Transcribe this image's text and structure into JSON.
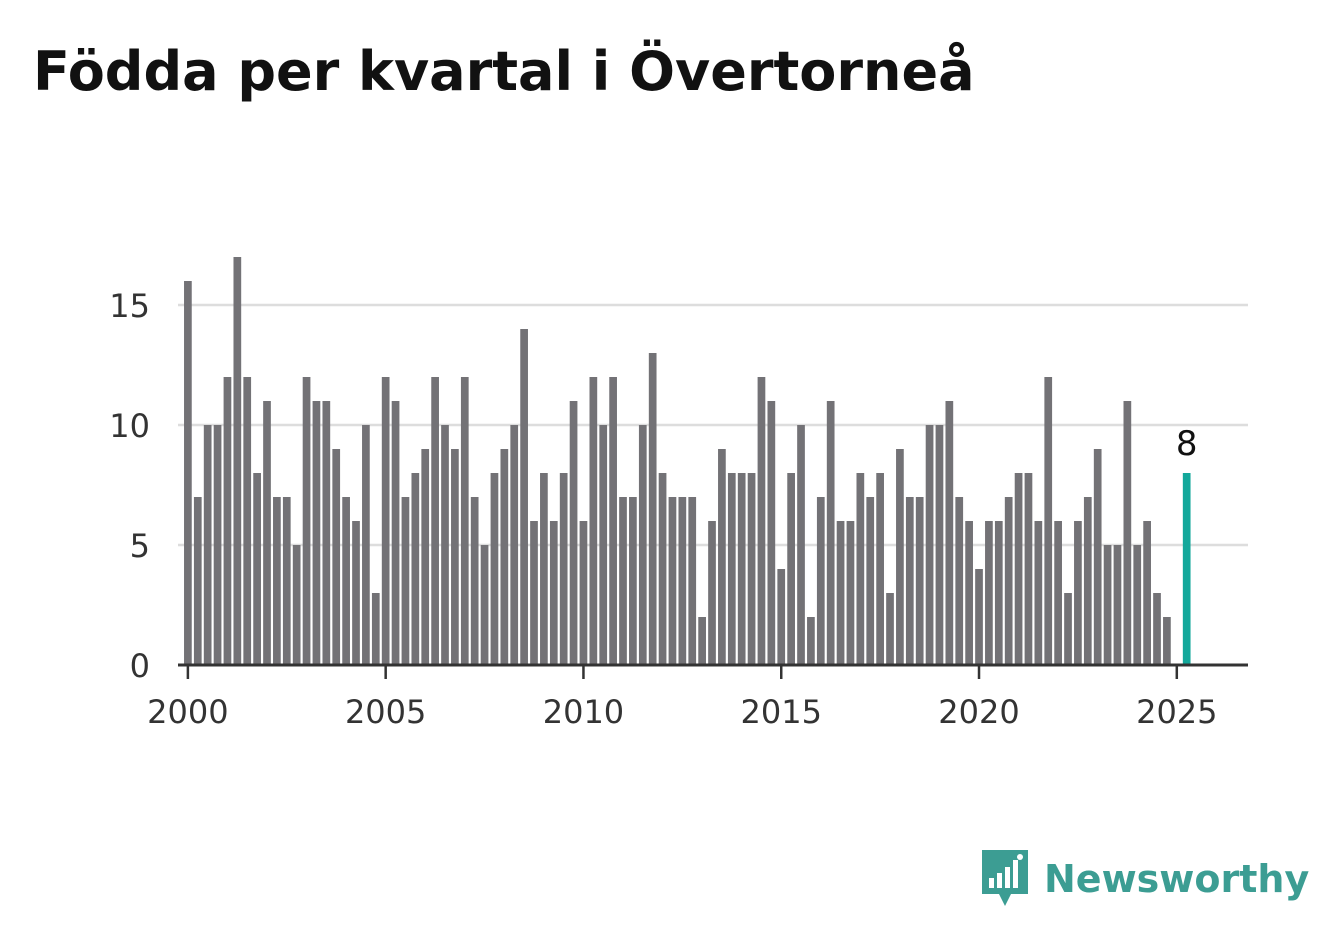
{
  "title": "Födda per kvartal i Övertorneå",
  "colors": {
    "bar": "#737276",
    "highlight": "#13a89b",
    "grid": "#dddddd",
    "axis": "#333333",
    "text": "#333333",
    "brand": "#3c9d93"
  },
  "brand": {
    "name": "Newsworthy",
    "icon": "bar-chart-speech-bubble-icon"
  },
  "chart_data": {
    "type": "bar",
    "title": "Födda per kvartal i Övertorneå",
    "xlabel": "",
    "ylabel": "",
    "xlim": [
      1999.75,
      2026.8
    ],
    "ylim": [
      0,
      17
    ],
    "yticks": [
      0,
      5,
      10,
      15
    ],
    "xticks": [
      2000,
      2005,
      2010,
      2015,
      2020,
      2025
    ],
    "grid": true,
    "legend": "none",
    "series": [
      {
        "start": "2000 Q1",
        "frequency": "quarter",
        "values": [
          16,
          7,
          10,
          10,
          12,
          17,
          12,
          8,
          11,
          7,
          7,
          5,
          12,
          11,
          11,
          9,
          7,
          6,
          10,
          3,
          12,
          11,
          7,
          8,
          9,
          12,
          10,
          9,
          12,
          7,
          5,
          8,
          9,
          10,
          14,
          6,
          8,
          6,
          8,
          11,
          6,
          12,
          10,
          12,
          7,
          7,
          10,
          13,
          8,
          7,
          7,
          7,
          2,
          6,
          9,
          8,
          8,
          8,
          12,
          11,
          4,
          8,
          10,
          2,
          7,
          11,
          6,
          6,
          8,
          7,
          8,
          3,
          9,
          7,
          7,
          10,
          10,
          11,
          7,
          6,
          4,
          6,
          6,
          7,
          8,
          8,
          6,
          12,
          6,
          3,
          6,
          7,
          9,
          5,
          5,
          11,
          5,
          6,
          3,
          2,
          0,
          8
        ]
      }
    ],
    "highlight": {
      "period": "2025 Q2",
      "value": 8,
      "label": "8"
    }
  }
}
